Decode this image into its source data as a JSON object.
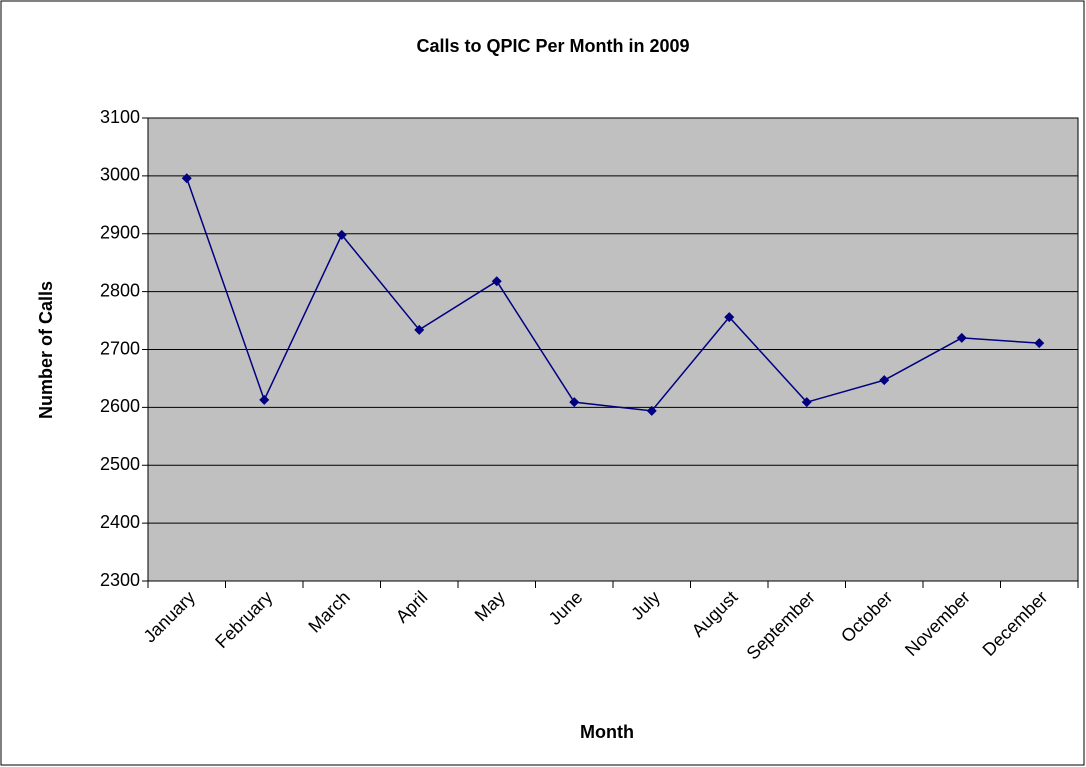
{
  "chart_data": {
    "type": "line",
    "title": "Calls to QPIC Per Month in 2009",
    "x_label": "Month",
    "y_label": "Number of Calls",
    "categories": [
      "January",
      "February",
      "March",
      "April",
      "May",
      "June",
      "July",
      "August",
      "September",
      "October",
      "November",
      "December"
    ],
    "series": [
      {
        "name": "Calls",
        "color": "#000080",
        "values": [
          2996,
          2613,
          2898,
          2734,
          2818,
          2609,
          2594,
          2756,
          2609,
          2647,
          2720,
          2711
        ]
      }
    ],
    "ylim": [
      2300,
      3100
    ],
    "yticks": [
      2300,
      2400,
      2500,
      2600,
      2700,
      2800,
      2900,
      3000,
      3100
    ],
    "grid": true
  }
}
